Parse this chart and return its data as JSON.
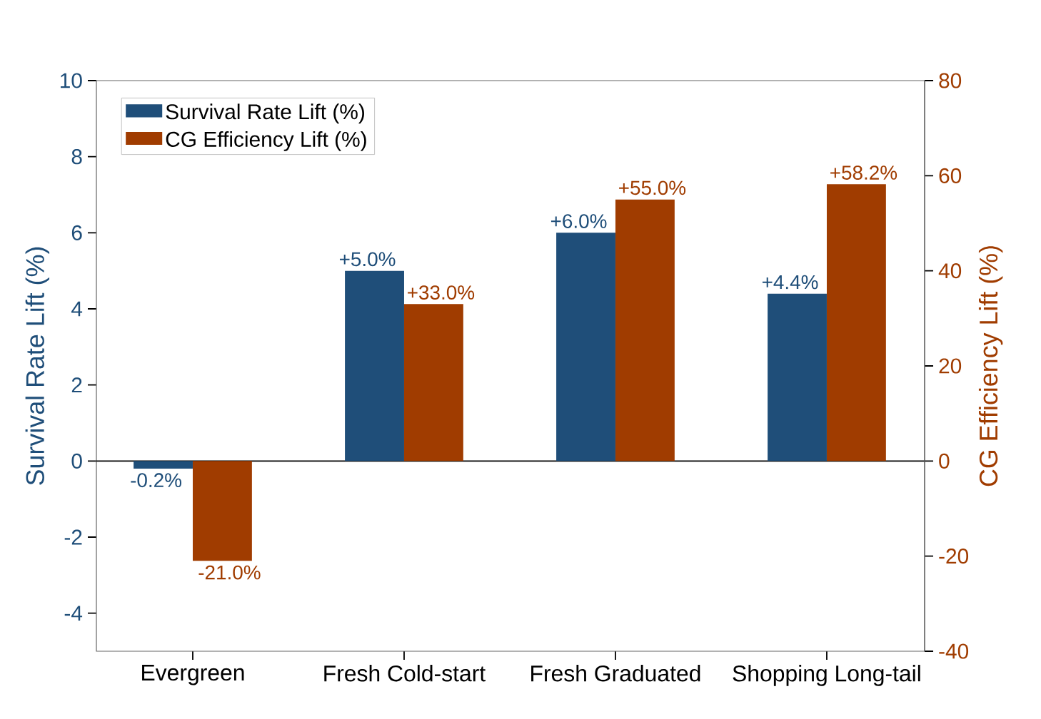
{
  "chart_data": {
    "type": "bar",
    "ylabel": "Survival Rate Lift (%)",
    "y2label": "CG Efficiency Lift (%)",
    "categories": [
      "Evergreen",
      "Fresh Cold-start",
      "Fresh Graduated",
      "Shopping Long-tail"
    ],
    "series": [
      {
        "name": "Survival Rate Lift (%)",
        "color": "#1f4e79",
        "values": [
          -0.2,
          5.0,
          6.0,
          4.4
        ],
        "value_labels": [
          "-0.2%",
          "+5.0%",
          "+6.0%",
          "+4.4%"
        ]
      },
      {
        "name": "CG Efficiency Lift (%)",
        "color": "#a03c00",
        "values": [
          -21.0,
          33.0,
          55.0,
          58.2
        ],
        "value_labels": [
          "-21.0%",
          "+33.0%",
          "+55.0%",
          "+58.2%"
        ],
        "axis": "y2"
      }
    ],
    "ylim": [
      -5,
      10
    ],
    "yticks": [
      -4,
      -2,
      0,
      2,
      4,
      6,
      8,
      10
    ],
    "y2lim": [
      -40,
      80
    ],
    "y2ticks": [
      -40,
      -20,
      0,
      20,
      40,
      60,
      80
    ],
    "ref_lines": [
      {
        "axis": "y",
        "value": 0,
        "color": "#000000"
      }
    ],
    "legend": "top left",
    "grid": false
  }
}
